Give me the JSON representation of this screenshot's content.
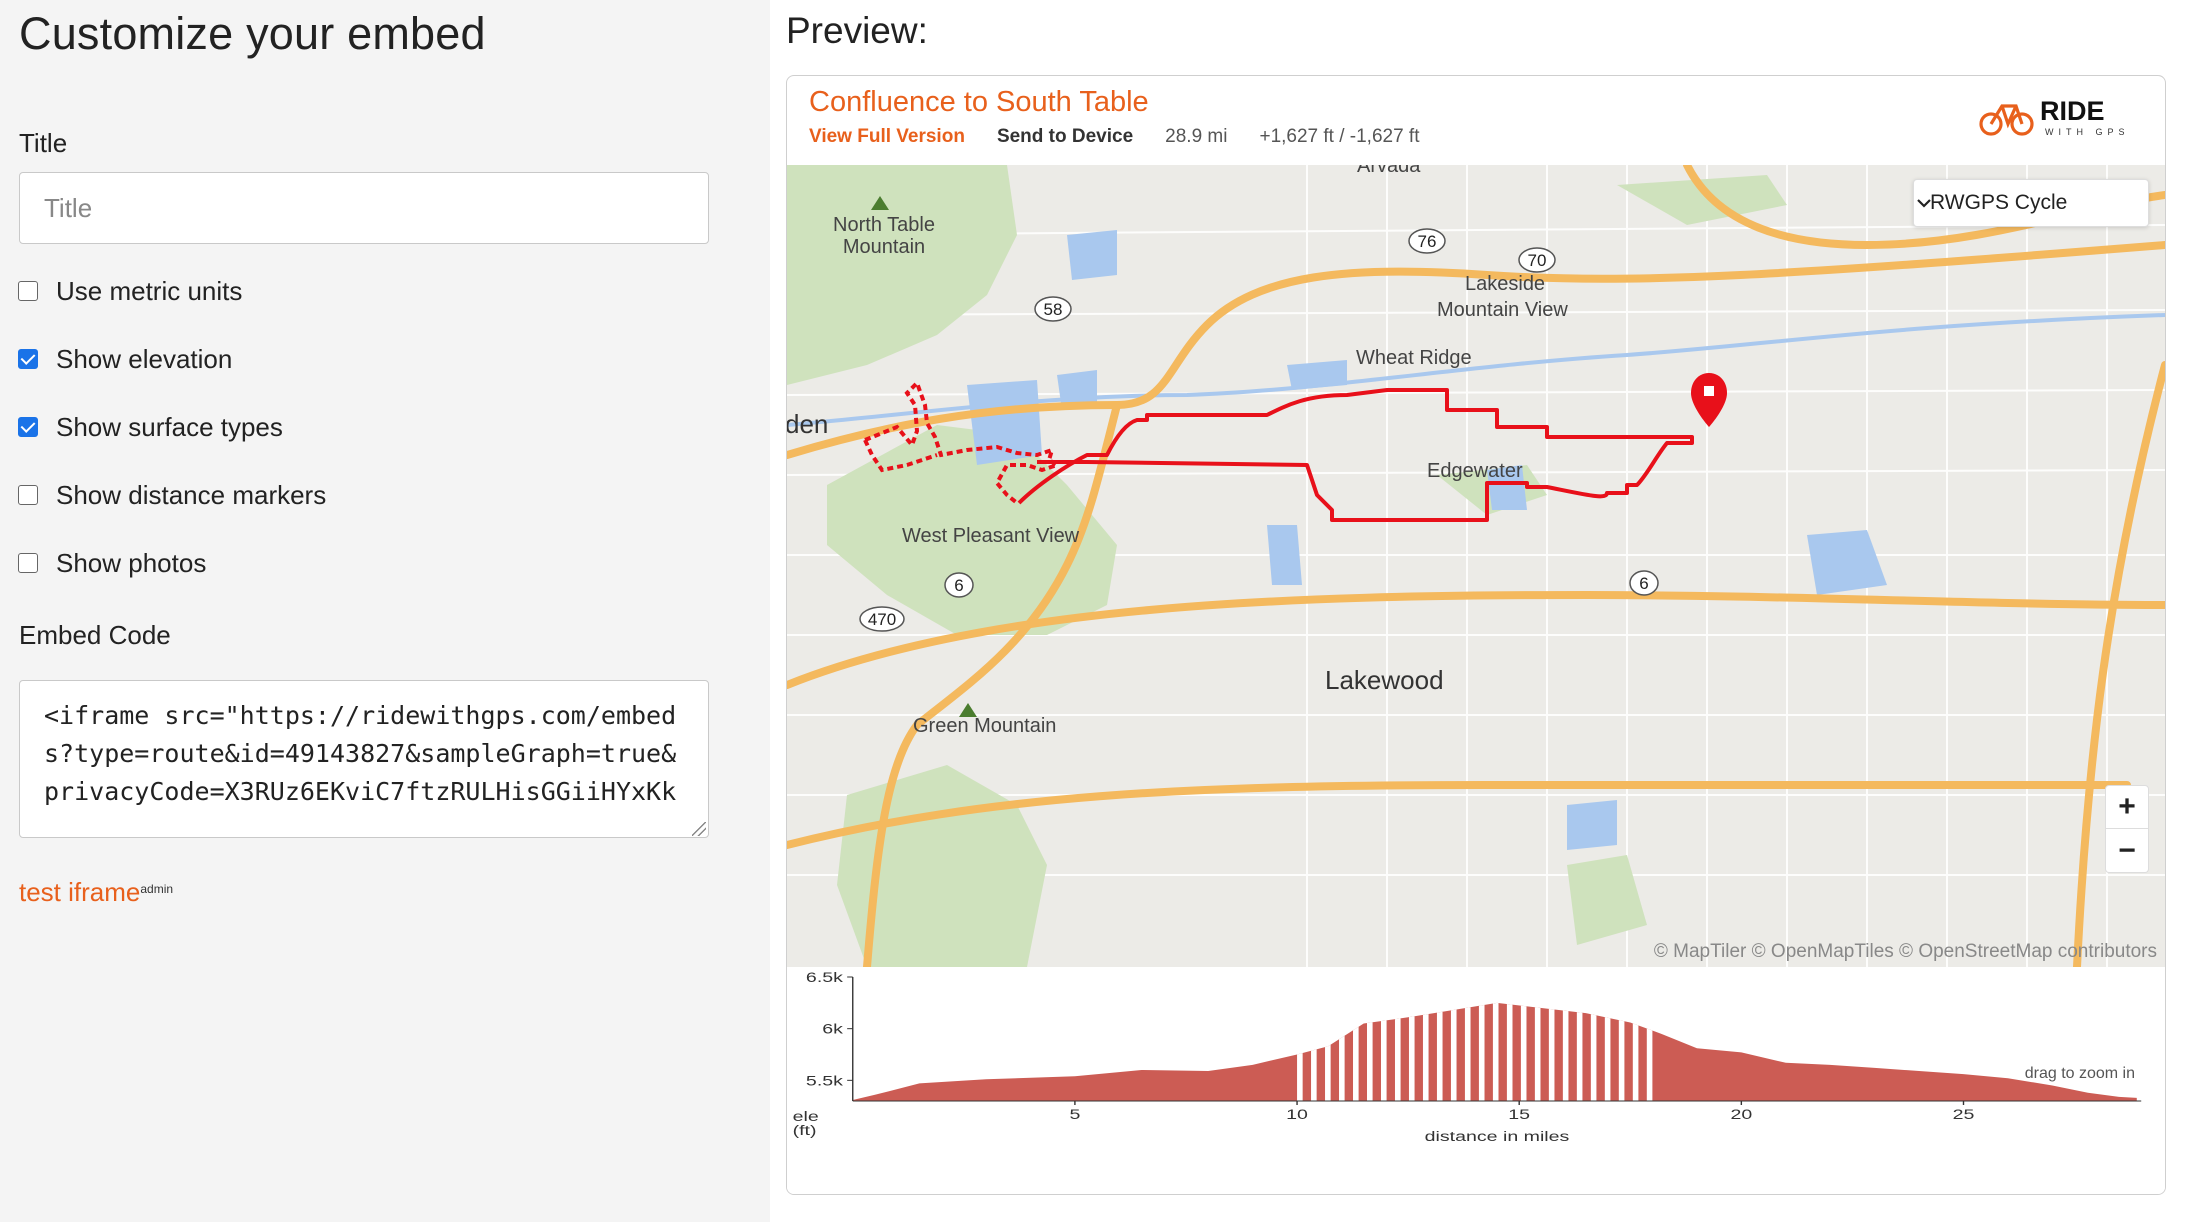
{
  "left": {
    "heading": "Customize your embed",
    "title_label": "Title",
    "title_placeholder": "Title",
    "options": [
      {
        "label": "Use metric units",
        "checked": false
      },
      {
        "label": "Show elevation",
        "checked": true
      },
      {
        "label": "Show surface types",
        "checked": true
      },
      {
        "label": "Show distance markers",
        "checked": false
      },
      {
        "label": "Show photos",
        "checked": false
      }
    ],
    "embed_code_label": "Embed Code",
    "embed_code": "<iframe src=\"https://ridewithgps.com/embeds?type=route&id=49143827&sampleGraph=true&privacyCode=X3RUz6EKviC7ftzRULHisGGiiHYxKk",
    "test_link": "test iframe",
    "test_link_sup": "admin"
  },
  "preview": {
    "heading": "Preview:",
    "route_title": "Confluence to South Table",
    "view_full": "View Full Version",
    "send_to_device": "Send to Device",
    "distance": "28.9 mi",
    "elevation_gain_loss": "+1,627 ft / -1,627 ft",
    "logo": {
      "word": "RIDE",
      "sub": "WITH GPS",
      "color": "#e8601c"
    }
  },
  "map": {
    "layer_select": "RWGPS Cycle",
    "zoom_in": "+",
    "zoom_out": "−",
    "attribution": "© MapTiler © OpenMapTiles © OpenStreetMap contributors",
    "places": [
      "Arvada",
      "North Table Mountain",
      "Lakeside",
      "Mountain View",
      "Wheat Ridge",
      "den",
      "Edgewater",
      "West Pleasant View",
      "Lakewood",
      "Green Mountain"
    ],
    "shields": [
      "76",
      "70",
      "58",
      "6",
      "470",
      "6"
    ],
    "route_color": "#e8101a"
  },
  "elevation": {
    "hint": "drag to zoom in",
    "y_title": "ele",
    "y_unit": "(ft)",
    "x_title": "distance in miles",
    "y_ticks": [
      "6.5k",
      "6k",
      "5.5k"
    ],
    "x_ticks": [
      "5",
      "10",
      "15",
      "20",
      "25"
    ],
    "fill_color": "#cc5c54"
  },
  "chart_data": {
    "type": "area",
    "xlabel": "distance in miles",
    "ylabel": "ele (ft)",
    "xlim": [
      0,
      29
    ],
    "ylim": [
      5300,
      6500
    ],
    "x": [
      0,
      0.5,
      1.5,
      3,
      5,
      6.5,
      8,
      9,
      10,
      10.7,
      11.5,
      12.5,
      13.5,
      14.5,
      15.5,
      16.5,
      17.5,
      18.2,
      19,
      20,
      21,
      22,
      23,
      24,
      25,
      26,
      27,
      27.8,
      28.5,
      28.9
    ],
    "y": [
      5310,
      5360,
      5470,
      5510,
      5540,
      5600,
      5590,
      5650,
      5750,
      5830,
      6050,
      6110,
      6180,
      6250,
      6200,
      6150,
      6060,
      5950,
      5810,
      5770,
      5670,
      5650,
      5620,
      5590,
      5560,
      5520,
      5450,
      5380,
      5340,
      5330
    ],
    "surface_unpaved_range_miles": [
      10,
      18
    ]
  }
}
